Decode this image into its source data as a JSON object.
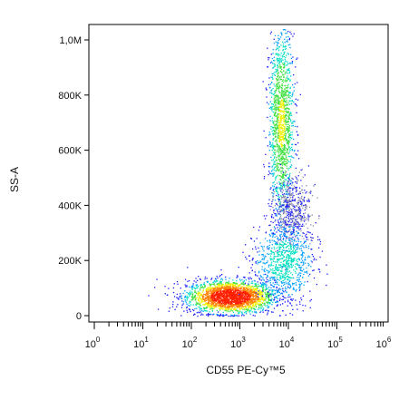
{
  "chart_data": {
    "type": "scatter",
    "title": "",
    "xlabel": "CD55 PE-Cy™5",
    "ylabel": "SS-A",
    "x_scale": "log",
    "xlim": [
      1,
      1000000
    ],
    "ylim": [
      0,
      1050000
    ],
    "grid": false,
    "legend": "none",
    "x_ticks": [
      {
        "base": "10",
        "exp": "0",
        "value": 1
      },
      {
        "base": "10",
        "exp": "1",
        "value": 10
      },
      {
        "base": "10",
        "exp": "2",
        "value": 100
      },
      {
        "base": "10",
        "exp": "3",
        "value": 1000
      },
      {
        "base": "10",
        "exp": "4",
        "value": 10000
      },
      {
        "base": "10",
        "exp": "5",
        "value": 100000
      },
      {
        "base": "10",
        "exp": "6",
        "value": 1000000
      }
    ],
    "y_ticks": [
      {
        "label": "0",
        "value": 0
      },
      {
        "label": "200K",
        "value": 200000
      },
      {
        "label": "400K",
        "value": 400000
      },
      {
        "label": "600K",
        "value": 600000
      },
      {
        "label": "800K",
        "value": 800000
      },
      {
        "label": "1,0M",
        "value": 1000000
      }
    ],
    "colormap": [
      "#1a1aff",
      "#00a0ff",
      "#00e0c0",
      "#40e040",
      "#f0f000",
      "#ff8000",
      "#ff2000"
    ],
    "populations": [
      {
        "name_hidden": true,
        "log10_x_center": 2.8,
        "y_center": 70000,
        "log10_x_spread": 0.45,
        "y_spread": 30000,
        "density": 1.0
      },
      {
        "name_hidden": true,
        "log10_x_center": 3.85,
        "y_center": 700000,
        "log10_x_spread": 0.13,
        "y_spread": 170000,
        "density": 0.6
      },
      {
        "name_hidden": true,
        "log10_x_center": 4.05,
        "y_center": 380000,
        "log10_x_spread": 0.2,
        "y_spread": 60000,
        "density": 0.25
      },
      {
        "name_hidden": true,
        "log10_x_center": 3.9,
        "y_center": 200000,
        "log10_x_spread": 0.3,
        "y_spread": 70000,
        "density": 0.35
      }
    ]
  }
}
